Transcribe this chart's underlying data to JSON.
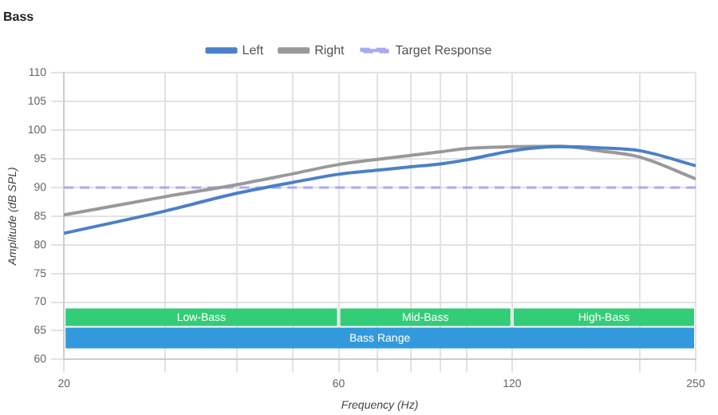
{
  "chart_data": {
    "type": "line",
    "title": "Bass",
    "xlabel": "Frequency (Hz)",
    "ylabel": "Amplitude (dB SPL)",
    "log": "x",
    "grid": true,
    "legend": "top",
    "marker": "none",
    "xlim": [
      20,
      250
    ],
    "ylim": [
      60,
      110
    ],
    "xticks": [
      20,
      {
        "value": 30,
        "label": null
      },
      {
        "value": 40,
        "label": null
      },
      {
        "value": 50,
        "label": null
      },
      60,
      {
        "value": 70,
        "label": null
      },
      {
        "value": 80,
        "label": null
      },
      {
        "value": 90,
        "label": null
      },
      {
        "value": 100,
        "label": null
      },
      120,
      {
        "value": 200,
        "label": null
      },
      250
    ],
    "yticks": [
      60,
      65,
      70,
      75,
      80,
      85,
      90,
      95,
      100,
      105,
      110
    ],
    "series": [
      {
        "name": "Left",
        "color": "#4a80c8",
        "x": [
          20,
          30,
          40,
          50,
          60,
          70,
          80,
          90,
          100,
          120,
          145,
          170,
          200,
          250
        ],
        "values": [
          82.0,
          85.9,
          89.0,
          90.9,
          92.3,
          93.0,
          93.6,
          94.1,
          94.8,
          96.4,
          97.1,
          96.9,
          96.4,
          93.8
        ]
      },
      {
        "name": "Right",
        "color": "#999999",
        "x": [
          20,
          30,
          40,
          50,
          60,
          70,
          90,
          100,
          120,
          145,
          170,
          200,
          250
        ],
        "values": [
          85.2,
          88.4,
          90.5,
          92.4,
          94.0,
          94.9,
          96.2,
          96.8,
          97.1,
          97.2,
          96.4,
          95.3,
          91.5
        ]
      },
      {
        "name": "Target Response",
        "color": "#aaaaf0",
        "line_style": "dashed",
        "x": [
          20,
          250
        ],
        "values": [
          90,
          90
        ]
      }
    ],
    "bands": [
      {
        "axis": "x",
        "from": 20,
        "to": 60,
        "label": "Low-Bass",
        "color": "#33cc77"
      },
      {
        "axis": "x",
        "from": 60,
        "to": 120,
        "label": "Mid-Bass",
        "color": "#33cc77"
      },
      {
        "axis": "x",
        "from": 120,
        "to": 250,
        "label": "High-Bass",
        "color": "#33cc77"
      },
      {
        "axis": "x",
        "from": 20,
        "to": 250,
        "label": "Bass Range",
        "color": "#3399dd"
      }
    ]
  }
}
